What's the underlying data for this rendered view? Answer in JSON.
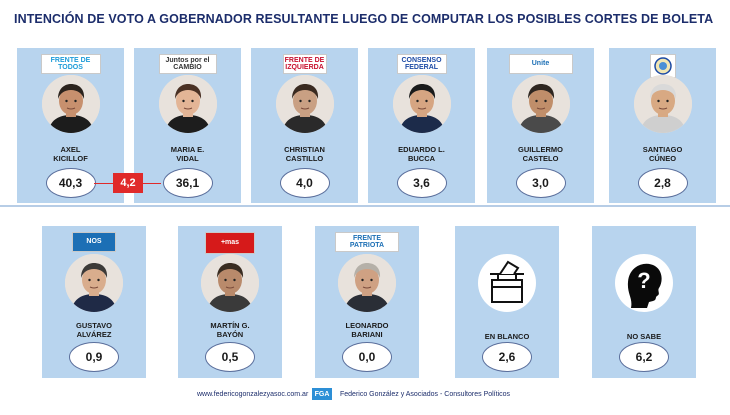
{
  "title": "INTENCIÓN DE VOTO A GOBERNADOR RESULTANTE LUEGO DE COMPUTAR LOS POSIBLES CORTES DE BOLETA",
  "difference": "4,2",
  "chart_data": {
    "type": "table",
    "categories": [
      "AXEL KICILLOF",
      "MARIA E. VIDAL",
      "CHRISTIAN CASTILLO",
      "EDUARDO L. BUCCA",
      "GUILLERMO CASTELO",
      "SANTIAGO CÚNEO",
      "GUSTAVO ALVÁREZ",
      "MARTÍN G. BAYÓN",
      "LEONARDO BARIANI",
      "EN BLANCO",
      "NO SABE"
    ],
    "values": [
      40.3,
      36.1,
      4.0,
      3.6,
      3.0,
      2.8,
      0.9,
      0.5,
      0.0,
      2.6,
      6.2
    ]
  },
  "cards": [
    {
      "name1": "AXEL",
      "name2": "KICILLOF",
      "value": "40,3",
      "logo": "FRENTE DE TODOS",
      "icon": "person-photo"
    },
    {
      "name1": "MARIA E.",
      "name2": "VIDAL",
      "value": "36,1",
      "logo": "Juntos por el CAMBIO",
      "icon": "person-photo"
    },
    {
      "name1": "CHRISTIAN",
      "name2": "CASTILLO",
      "value": "4,0",
      "logo": "FRENTE DE IZQUIERDA",
      "icon": "person-photo"
    },
    {
      "name1": "EDUARDO L.",
      "name2": "BUCCA",
      "value": "3,6",
      "logo": "CONSENSO FEDERAL",
      "icon": "person-photo"
    },
    {
      "name1": "GUILLERMO",
      "name2": "CASTELO",
      "value": "3,0",
      "logo": "Unite",
      "icon": "person-photo"
    },
    {
      "name1": "SANTIAGO",
      "name2": "CÚNEO",
      "value": "2,8",
      "logo": "",
      "icon": "person-photo"
    },
    {
      "name1": "GUSTAVO",
      "name2": "ALVÁREZ",
      "value": "0,9",
      "logo": "NOS",
      "icon": "person-photo"
    },
    {
      "name1": "MARTÍN G.",
      "name2": "BAYÓN",
      "value": "0,5",
      "logo": "+mas",
      "icon": "person-photo"
    },
    {
      "name1": "LEONARDO",
      "name2": "BARIANI",
      "value": "0,0",
      "logo": "FRENTE PATRIOTA",
      "icon": "person-photo"
    },
    {
      "name1": "EN BLANCO",
      "name2": "",
      "value": "2,6",
      "logo": "",
      "icon": "ballot-box-icon"
    },
    {
      "name1": "NO SABE",
      "name2": "",
      "value": "6,2",
      "logo": "",
      "icon": "question-head-icon"
    }
  ],
  "footer": {
    "url": "www.federicogonzalezyasoc.com.ar",
    "badge": "FGA",
    "firm": "Federico González y Asociados - Consultores Políticos"
  }
}
